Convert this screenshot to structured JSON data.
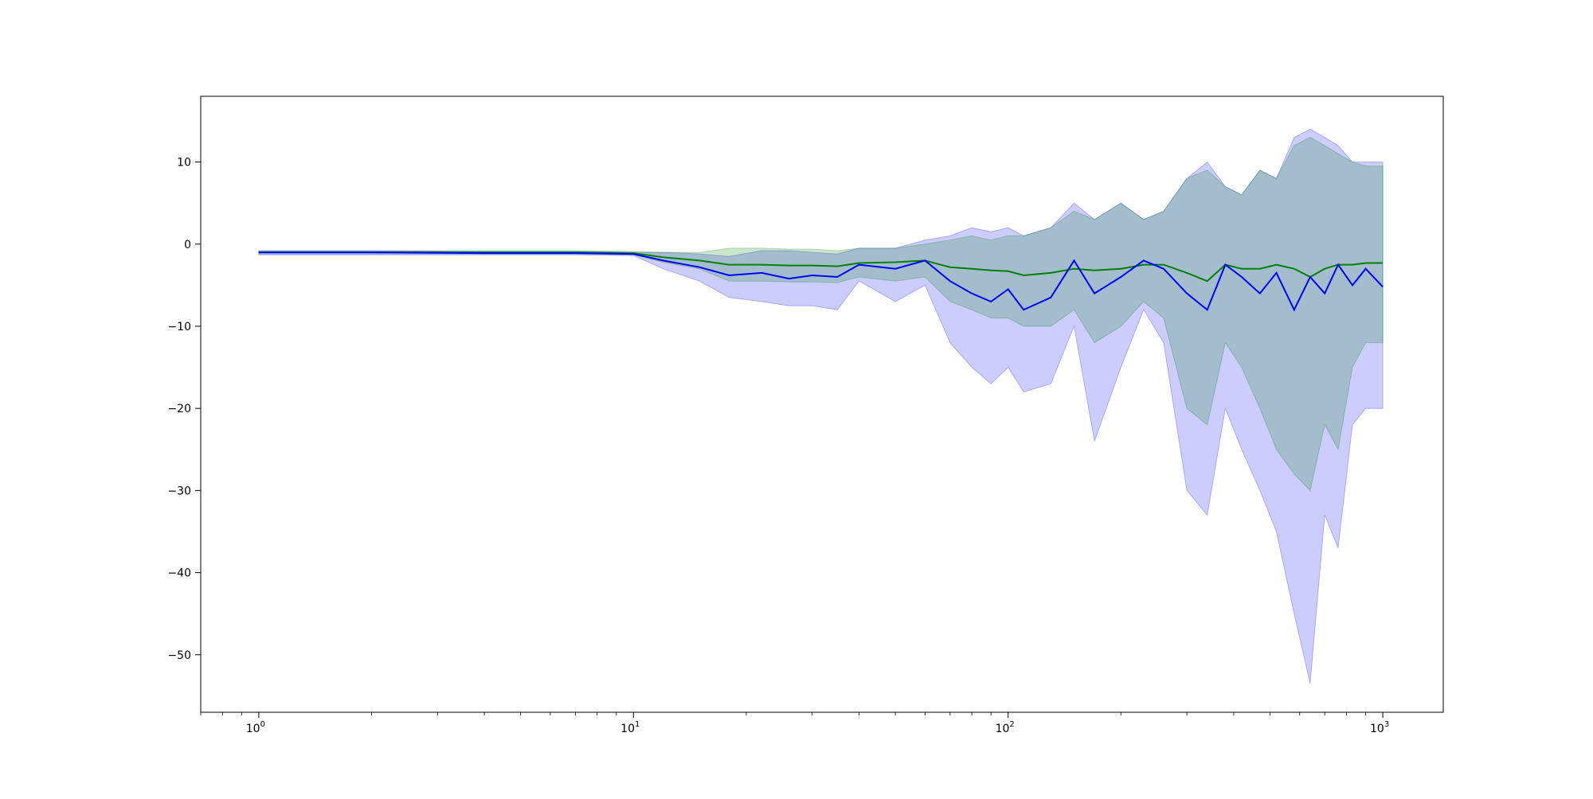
{
  "chart_data": {
    "type": "line",
    "title": "",
    "xlabel": "",
    "ylabel": "",
    "xscale": "log",
    "xlim": [
      0.7,
      1450
    ],
    "ylim": [
      -57,
      18
    ],
    "grid": false,
    "legend": "none",
    "x_ticks": [
      {
        "value": 1,
        "base": "10",
        "exp": "0"
      },
      {
        "value": 10,
        "base": "10",
        "exp": "1"
      },
      {
        "value": 100,
        "base": "10",
        "exp": "2"
      },
      {
        "value": 1000,
        "base": "10",
        "exp": "3"
      }
    ],
    "y_ticks": [
      {
        "value": 10,
        "label": "10"
      },
      {
        "value": 0,
        "label": "0"
      },
      {
        "value": -10,
        "label": "−10"
      },
      {
        "value": -20,
        "label": "−20"
      },
      {
        "value": -30,
        "label": "−30"
      },
      {
        "value": -40,
        "label": "−40"
      },
      {
        "value": -50,
        "label": "−50"
      }
    ],
    "series": [
      {
        "color": "#0000ff",
        "band_color": "#0000ff",
        "band_opacity": 0.2,
        "x": [
          1,
          2,
          4,
          7,
          10,
          12,
          15,
          18,
          22,
          26,
          30,
          35,
          40,
          50,
          60,
          70,
          80,
          90,
          100,
          110,
          130,
          150,
          170,
          200,
          230,
          260,
          300,
          340,
          380,
          420,
          470,
          520,
          580,
          640,
          700,
          760,
          830,
          900,
          1000
        ],
        "mean": [
          -1.0,
          -1.0,
          -1.1,
          -1.1,
          -1.2,
          -2.0,
          -2.8,
          -3.8,
          -3.5,
          -4.2,
          -3.8,
          -4.0,
          -2.5,
          -3.0,
          -2.0,
          -4.5,
          -6.0,
          -7.0,
          -5.5,
          -8.0,
          -6.5,
          -2.0,
          -6.0,
          -4.0,
          -2.0,
          -3.0,
          -6.0,
          -8.0,
          -2.5,
          -4.0,
          -6.0,
          -3.5,
          -8.0,
          -4.0,
          -6.0,
          -2.5,
          -5.0,
          -3.0,
          -5.2
        ],
        "upper": [
          -0.8,
          -0.8,
          -0.9,
          -0.9,
          -1.0,
          -1.0,
          -1.2,
          -1.5,
          -0.8,
          -0.8,
          -1.0,
          -1.2,
          -0.5,
          -0.5,
          0.5,
          1.0,
          2.0,
          1.5,
          2.0,
          1.0,
          2.0,
          5.0,
          3.0,
          5.0,
          3.0,
          4.0,
          8.0,
          10.0,
          7.0,
          6.0,
          9.0,
          8.0,
          13.0,
          14.0,
          13.0,
          12.0,
          10.0,
          10.0,
          10.0
        ],
        "lower": [
          -1.3,
          -1.3,
          -1.3,
          -1.3,
          -1.4,
          -3.0,
          -4.5,
          -6.5,
          -7.0,
          -7.5,
          -7.5,
          -8.0,
          -4.5,
          -7.0,
          -5.0,
          -12.0,
          -15.0,
          -17.0,
          -15.0,
          -18.0,
          -17.0,
          -10.0,
          -24.0,
          -15.0,
          -8.0,
          -12.0,
          -30.0,
          -33.0,
          -20.0,
          -25.0,
          -30.0,
          -35.0,
          -45.0,
          -53.5,
          -33.0,
          -37.0,
          -22.0,
          -20.0,
          -20.0
        ]
      },
      {
        "color": "#008000",
        "band_color": "#008000",
        "band_opacity": 0.2,
        "x": [
          1,
          2,
          4,
          7,
          10,
          12,
          15,
          18,
          22,
          26,
          30,
          35,
          40,
          50,
          60,
          70,
          80,
          90,
          100,
          110,
          130,
          150,
          170,
          200,
          230,
          260,
          300,
          340,
          380,
          420,
          470,
          520,
          580,
          640,
          700,
          760,
          830,
          900,
          1000
        ],
        "mean": [
          -1.0,
          -1.0,
          -1.0,
          -1.0,
          -1.1,
          -1.6,
          -2.0,
          -2.5,
          -2.5,
          -2.6,
          -2.6,
          -2.7,
          -2.3,
          -2.2,
          -2.0,
          -2.8,
          -3.0,
          -3.2,
          -3.3,
          -3.8,
          -3.5,
          -3.0,
          -3.2,
          -3.0,
          -2.5,
          -2.5,
          -3.5,
          -4.5,
          -2.5,
          -3.0,
          -3.0,
          -2.5,
          -3.0,
          -4.0,
          -3.0,
          -2.5,
          -2.5,
          -2.3,
          -2.3
        ],
        "upper": [
          -0.8,
          -0.8,
          -0.8,
          -0.8,
          -0.9,
          -1.0,
          -1.0,
          -0.5,
          -0.5,
          -0.6,
          -0.6,
          -0.8,
          -0.5,
          -0.5,
          0.0,
          0.5,
          1.0,
          0.5,
          1.0,
          1.0,
          2.0,
          4.0,
          3.0,
          5.0,
          3.0,
          4.0,
          8.0,
          9.0,
          7.0,
          6.0,
          9.0,
          8.0,
          12.0,
          13.0,
          12.0,
          11.0,
          10.0,
          9.5,
          9.5
        ],
        "lower": [
          -1.2,
          -1.2,
          -1.2,
          -1.2,
          -1.3,
          -2.2,
          -3.0,
          -4.5,
          -4.5,
          -4.6,
          -4.6,
          -4.7,
          -4.0,
          -4.5,
          -4.0,
          -7.0,
          -8.0,
          -9.0,
          -9.0,
          -10.0,
          -10.0,
          -8.0,
          -12.0,
          -10.0,
          -7.0,
          -9.0,
          -20.0,
          -22.0,
          -12.0,
          -15.0,
          -20.0,
          -25.0,
          -28.0,
          -30.0,
          -22.0,
          -25.0,
          -15.0,
          -12.0,
          -12.0
        ]
      }
    ]
  }
}
